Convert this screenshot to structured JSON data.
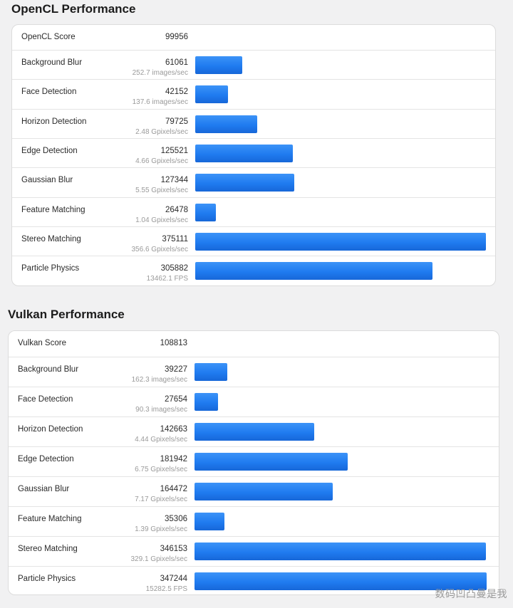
{
  "sections": [
    {
      "title": "OpenCL Performance",
      "score_label": "OpenCL Score",
      "score_value": "99956",
      "max_score": 375111,
      "rows": [
        {
          "label": "Background Blur",
          "score": "61061",
          "detail": "252.7 images/sec",
          "value": 61061
        },
        {
          "label": "Face Detection",
          "score": "42152",
          "detail": "137.6 images/sec",
          "value": 42152
        },
        {
          "label": "Horizon Detection",
          "score": "79725",
          "detail": "2.48 Gpixels/sec",
          "value": 79725
        },
        {
          "label": "Edge Detection",
          "score": "125521",
          "detail": "4.66 Gpixels/sec",
          "value": 125521
        },
        {
          "label": "Gaussian Blur",
          "score": "127344",
          "detail": "5.55 Gpixels/sec",
          "value": 127344
        },
        {
          "label": "Feature Matching",
          "score": "26478",
          "detail": "1.04 Gpixels/sec",
          "value": 26478
        },
        {
          "label": "Stereo Matching",
          "score": "375111",
          "detail": "356.6 Gpixels/sec",
          "value": 375111
        },
        {
          "label": "Particle Physics",
          "score": "305882",
          "detail": "13462.1 FPS",
          "value": 305882
        }
      ]
    },
    {
      "title": "Vulkan Performance",
      "score_label": "Vulkan Score",
      "score_value": "108813",
      "max_score": 347244,
      "rows": [
        {
          "label": "Background Blur",
          "score": "39227",
          "detail": "162.3 images/sec",
          "value": 39227
        },
        {
          "label": "Face Detection",
          "score": "27654",
          "detail": "90.3 images/sec",
          "value": 27654
        },
        {
          "label": "Horizon Detection",
          "score": "142663",
          "detail": "4.44 Gpixels/sec",
          "value": 142663
        },
        {
          "label": "Edge Detection",
          "score": "181942",
          "detail": "6.75 Gpixels/sec",
          "value": 181942
        },
        {
          "label": "Gaussian Blur",
          "score": "164472",
          "detail": "7.17 Gpixels/sec",
          "value": 164472
        },
        {
          "label": "Feature Matching",
          "score": "35306",
          "detail": "1.39 Gpixels/sec",
          "value": 35306
        },
        {
          "label": "Stereo Matching",
          "score": "346153",
          "detail": "329.1 Gpixels/sec",
          "value": 346153
        },
        {
          "label": "Particle Physics",
          "score": "347244",
          "detail": "15282.5 FPS",
          "value": 347244
        }
      ]
    }
  ],
  "watermark": "数码凹凸曼是我",
  "colors": {
    "bar": "#1f7bf0",
    "page_bg": "#f1f1f2",
    "card_bg": "#ffffff"
  }
}
